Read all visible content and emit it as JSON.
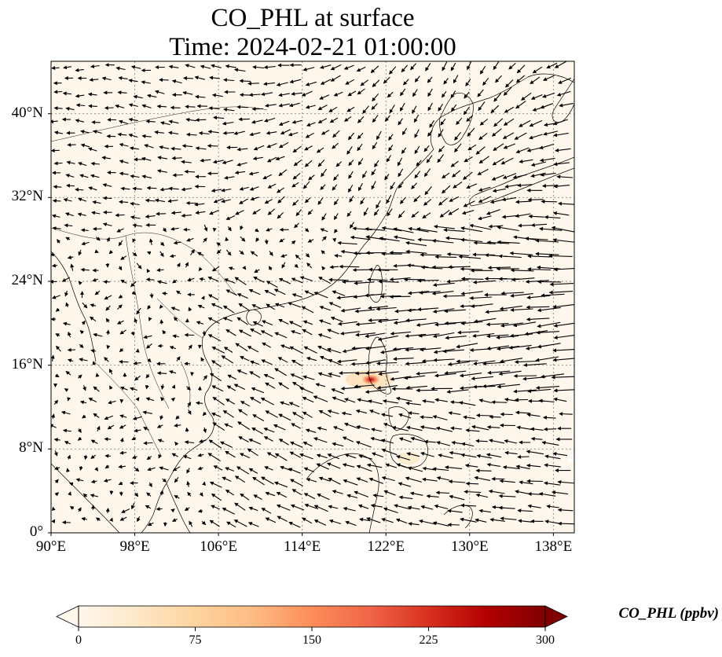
{
  "title": {
    "line1": "CO_PHL at surface",
    "line2": "Time: 2024-02-21 01:00:00"
  },
  "map": {
    "projection": "PlateCarree",
    "lon_range": [
      90,
      140
    ],
    "lat_range": [
      0,
      45
    ],
    "background_color": "#fff7ec",
    "coastline_color": "#000000",
    "gridlines": "dotted",
    "wind_vectors": "black quiver arrows",
    "hotspot_location": "Manila area (~121°E, 14.5°N)"
  },
  "axes": {
    "y_ticks": [
      {
        "value": 0,
        "label": "0°"
      },
      {
        "value": 8,
        "label": "8°N"
      },
      {
        "value": 16,
        "label": "16°N"
      },
      {
        "value": 24,
        "label": "24°N"
      },
      {
        "value": 32,
        "label": "32°N"
      },
      {
        "value": 40,
        "label": "40°N"
      }
    ],
    "x_ticks": [
      {
        "value": 90,
        "label": "90°E"
      },
      {
        "value": 98,
        "label": "98°E"
      },
      {
        "value": 106,
        "label": "106°E"
      },
      {
        "value": 114,
        "label": "114°E"
      },
      {
        "value": 122,
        "label": "122°E"
      },
      {
        "value": 130,
        "label": "130°E"
      },
      {
        "value": 138,
        "label": "138°E"
      }
    ]
  },
  "colorbar": {
    "label": "CO_PHL (ppbv)",
    "colormap": "OrRd",
    "range": [
      0,
      300
    ],
    "extend": "both",
    "ticks": [
      {
        "value": 0,
        "label": "0"
      },
      {
        "value": 75,
        "label": "75"
      },
      {
        "value": 150,
        "label": "150"
      },
      {
        "value": 225,
        "label": "225"
      },
      {
        "value": 300,
        "label": "300"
      }
    ],
    "stops": [
      "#fff7ec",
      "#fee8c8",
      "#fdd49e",
      "#fdbb84",
      "#fc8d59",
      "#ef6548",
      "#d7301f",
      "#b30000",
      "#7f0000"
    ]
  }
}
